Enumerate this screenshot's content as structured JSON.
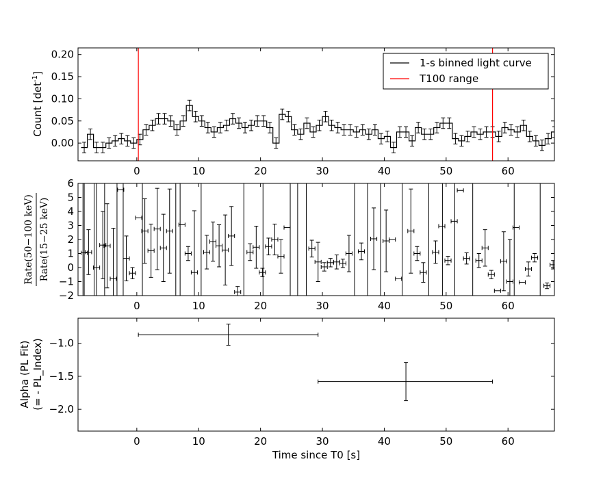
{
  "colors": {
    "light_curve": "#000000",
    "t100": "#ff0000",
    "axis": "#000000"
  },
  "chart_data": [
    {
      "type": "line",
      "panel": "light-curve",
      "ylabel": "Count [det",
      "ylabel_sup": "-1",
      "ylabel_end": "]",
      "xlim": [
        -9.5,
        67.5
      ],
      "ylim": [
        -0.04,
        0.215
      ],
      "xticks": [
        0,
        10,
        20,
        30,
        40,
        50,
        60
      ],
      "xtick_labels": [
        "0",
        "10",
        "20",
        "30",
        "40",
        "50",
        "60"
      ],
      "yticks": [
        0.0,
        0.05,
        0.1,
        0.15,
        0.2
      ],
      "ytick_labels": [
        "0.00",
        "0.05",
        "0.10",
        "0.15",
        "0.20"
      ],
      "legend": {
        "position": "top-right",
        "entries": [
          "1-s binned light curve",
          "T100 range"
        ]
      },
      "t100": [
        0.25,
        57.5
      ],
      "bin_start": -9,
      "values": [
        -0.01,
        0.02,
        -0.01,
        -0.01,
        0.0,
        0.005,
        0.01,
        0.005,
        0.0,
        0.008,
        0.03,
        0.04,
        0.055,
        0.055,
        0.05,
        0.03,
        0.05,
        0.085,
        0.06,
        0.05,
        0.035,
        0.025,
        0.035,
        0.04,
        0.055,
        0.045,
        0.035,
        0.04,
        0.05,
        0.05,
        0.035,
        0.0,
        0.065,
        0.06,
        0.03,
        0.02,
        0.045,
        0.025,
        0.04,
        0.06,
        0.04,
        0.035,
        0.03,
        0.03,
        0.025,
        0.03,
        0.02,
        0.03,
        0.01,
        0.015,
        -0.01,
        0.025,
        0.025,
        0.005,
        0.035,
        0.02,
        0.02,
        0.035,
        0.045,
        0.045,
        0.01,
        0.005,
        0.015,
        0.025,
        0.02,
        0.025,
        0.025,
        0.015,
        0.035,
        0.03,
        0.025,
        0.04,
        0.015,
        0.005,
        -0.005,
        0.01,
        0.025,
        0.01,
        0.02,
        0.03,
        -0.005,
        0.005,
        0.025
      ]
    },
    {
      "type": "scatter",
      "panel": "hardness-ratio",
      "ylabel_num": "Rate(50−100 keV)",
      "ylabel_den": "Rate(15−25 keV)",
      "xlim": [
        -9.5,
        67.5
      ],
      "ylim": [
        -2,
        6
      ],
      "xticks": [
        0,
        10,
        20,
        30,
        40,
        50,
        60
      ],
      "xtick_labels": [
        "0",
        "10",
        "20",
        "30",
        "40",
        "50",
        "60"
      ],
      "yticks": [
        -2,
        -1,
        0,
        1,
        2,
        3,
        4,
        5,
        6
      ],
      "ytick_labels": [
        "−2",
        "−1",
        "0",
        "1",
        "2",
        "3",
        "4",
        "5",
        "6"
      ],
      "points": [
        {
          "x": -8.5,
          "y": 1.05,
          "err": 5.0
        },
        {
          "x": -7.8,
          "y": 1.1,
          "err": 1.6
        },
        {
          "x": -6.5,
          "y": 0.0,
          "err": 10.0
        },
        {
          "x": -5.5,
          "y": 1.6,
          "err": 2.4
        },
        {
          "x": -4.8,
          "y": 1.55,
          "err": 3.0
        },
        {
          "x": -3.8,
          "y": -0.8,
          "err": 3.6
        },
        {
          "x": -2.6,
          "y": 5.55,
          "err": 0.0
        },
        {
          "x": -1.7,
          "y": 0.65,
          "err": 1.6
        },
        {
          "x": -0.7,
          "y": -0.4,
          "err": 0.4
        },
        {
          "x": 0.3,
          "y": 3.55,
          "err": 0.0
        },
        {
          "x": 1.3,
          "y": 2.6,
          "err": 2.3
        },
        {
          "x": 2.3,
          "y": 1.2,
          "err": 1.9
        },
        {
          "x": 3.3,
          "y": 2.75,
          "err": 2.9
        },
        {
          "x": 4.3,
          "y": 1.4,
          "err": 2.4
        },
        {
          "x": 5.3,
          "y": 2.6,
          "err": 3.0
        },
        {
          "x": 7.3,
          "y": 3.05,
          "err": 0.0
        },
        {
          "x": 8.3,
          "y": 1.0,
          "err": 0.5
        },
        {
          "x": 9.3,
          "y": -0.35,
          "err": 4.4
        },
        {
          "x": 11.3,
          "y": 1.1,
          "err": 1.2
        },
        {
          "x": 12.3,
          "y": 1.85,
          "err": 1.4
        },
        {
          "x": 13.3,
          "y": 1.55,
          "err": 1.5
        },
        {
          "x": 14.3,
          "y": 1.25,
          "err": 2.5
        },
        {
          "x": 15.3,
          "y": 2.25,
          "err": 2.1
        },
        {
          "x": 16.3,
          "y": -1.75,
          "err": 0.4
        },
        {
          "x": 18.3,
          "y": 1.1,
          "err": 0.6
        },
        {
          "x": 19.3,
          "y": 1.45,
          "err": 1.5
        },
        {
          "x": 20.3,
          "y": -0.35,
          "err": 0.3
        },
        {
          "x": 21.3,
          "y": 1.5,
          "err": 0.6
        },
        {
          "x": 22.3,
          "y": 2.0,
          "err": 1.1
        },
        {
          "x": 23.3,
          "y": 0.8,
          "err": 1.2
        },
        {
          "x": 24.3,
          "y": 2.85,
          "err": 0.0
        },
        {
          "x": 28.3,
          "y": 1.35,
          "err": 0.6
        },
        {
          "x": 29.3,
          "y": 0.4,
          "err": 1.4
        },
        {
          "x": 30.3,
          "y": 0.05,
          "err": 0.3
        },
        {
          "x": 31.3,
          "y": 0.35,
          "err": 0.3
        },
        {
          "x": 32.3,
          "y": 0.4,
          "err": 0.5
        },
        {
          "x": 33.3,
          "y": 0.3,
          "err": 0.3
        },
        {
          "x": 34.3,
          "y": 1.0,
          "err": 1.3
        },
        {
          "x": 36.3,
          "y": 1.15,
          "err": 0.6
        },
        {
          "x": 38.3,
          "y": 2.05,
          "err": 2.2
        },
        {
          "x": 40.3,
          "y": 1.9,
          "err": 2.2
        },
        {
          "x": 41.3,
          "y": 2.0,
          "err": 0.0
        },
        {
          "x": 42.3,
          "y": -0.8,
          "err": 0.0
        },
        {
          "x": 44.3,
          "y": 2.6,
          "err": 3.0
        },
        {
          "x": 45.3,
          "y": 1.0,
          "err": 0.5
        },
        {
          "x": 46.3,
          "y": -0.35,
          "err": 0.7
        },
        {
          "x": 48.3,
          "y": 1.1,
          "err": 0.8
        },
        {
          "x": 49.3,
          "y": 2.95,
          "err": 0.0
        },
        {
          "x": 50.3,
          "y": 0.5,
          "err": 0.3
        },
        {
          "x": 51.3,
          "y": 3.3,
          "err": 0.0
        },
        {
          "x": 52.3,
          "y": 5.5,
          "err": 0.0
        },
        {
          "x": 53.3,
          "y": 0.65,
          "err": 0.4
        },
        {
          "x": 55.3,
          "y": 0.5,
          "err": 0.5
        },
        {
          "x": 56.3,
          "y": 1.4,
          "err": 1.3
        },
        {
          "x": 57.3,
          "y": -0.5,
          "err": 0.3
        },
        {
          "x": 58.3,
          "y": -1.65,
          "err": 0.0
        },
        {
          "x": 59.3,
          "y": 0.45,
          "err": 2.1
        },
        {
          "x": 60.3,
          "y": -1.0,
          "err": 3.0
        },
        {
          "x": 61.3,
          "y": 2.85,
          "err": 0.0
        },
        {
          "x": 62.3,
          "y": -1.05,
          "err": 0.0
        },
        {
          "x": 63.3,
          "y": -0.1,
          "err": 0.5
        },
        {
          "x": 64.3,
          "y": 0.7,
          "err": 0.3
        },
        {
          "x": 66.3,
          "y": -1.3,
          "err": 0.2
        },
        {
          "x": 67.3,
          "y": 0.2,
          "err": 0.3
        }
      ],
      "vertical_lines": [
        -8.7,
        -6.9,
        -5.2,
        -3.2,
        -2.2,
        0.9,
        6.3,
        7.0,
        10.4,
        17.3,
        20.4,
        24.8,
        26.0,
        27.4,
        35.2,
        37.3,
        39.4,
        42.9,
        47.2,
        49.4,
        51.4,
        54.3,
        61.0,
        65.2
      ]
    },
    {
      "type": "scatter",
      "panel": "spectral-index",
      "xlabel": "Time since T0 [s]",
      "ylabel_line1": "Alpha (PL Fit)",
      "ylabel_line2": "(= - PL_Index)",
      "xlim": [
        -9.5,
        67.5
      ],
      "ylim": [
        -2.33,
        -0.62
      ],
      "xticks": [
        0,
        10,
        20,
        30,
        40,
        50,
        60
      ],
      "xtick_labels": [
        "0",
        "10",
        "20",
        "30",
        "40",
        "50",
        "60"
      ],
      "yticks": [
        -1.0,
        -1.5,
        -2.0
      ],
      "ytick_labels": [
        "−1.0",
        "−1.5",
        "−2.0"
      ],
      "points": [
        {
          "x": 14.8,
          "y": -0.87,
          "xerr_low": 0.25,
          "xerr_high": 29.3,
          "yerr": 0.16
        },
        {
          "x": 43.5,
          "y": -1.58,
          "xerr_low": 29.3,
          "xerr_high": 57.5,
          "yerr": 0.29
        }
      ]
    }
  ]
}
